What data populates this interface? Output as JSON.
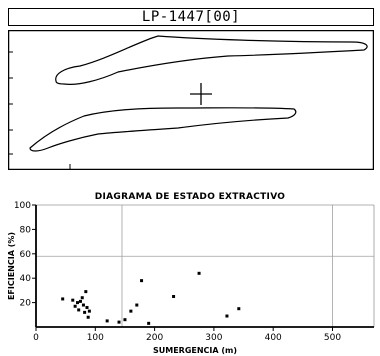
{
  "card": {
    "title": "LP-1447[00]"
  },
  "chart_data": {
    "type": "scatter",
    "title": "DIAGRAMA DE ESTADO EXTRACTIVO",
    "xlabel": "SUMERGENCIA (m)",
    "ylabel": "EFICIENCIA (%)",
    "xlim": [
      0,
      570
    ],
    "ylim": [
      0,
      100
    ],
    "xticks": [
      0,
      100,
      200,
      300,
      400,
      500
    ],
    "yticks": [
      20,
      40,
      60,
      80,
      100
    ],
    "grid": false,
    "reference_lines": {
      "x": [
        145,
        500
      ],
      "y": [
        58
      ]
    },
    "points": [
      {
        "x": 45,
        "y": 23
      },
      {
        "x": 62,
        "y": 22
      },
      {
        "x": 66,
        "y": 17
      },
      {
        "x": 70,
        "y": 20
      },
      {
        "x": 72,
        "y": 14
      },
      {
        "x": 75,
        "y": 21
      },
      {
        "x": 78,
        "y": 24
      },
      {
        "x": 80,
        "y": 18
      },
      {
        "x": 82,
        "y": 12
      },
      {
        "x": 84,
        "y": 29
      },
      {
        "x": 86,
        "y": 16
      },
      {
        "x": 88,
        "y": 8
      },
      {
        "x": 90,
        "y": 13
      },
      {
        "x": 120,
        "y": 5
      },
      {
        "x": 140,
        "y": 4
      },
      {
        "x": 150,
        "y": 6
      },
      {
        "x": 160,
        "y": 13
      },
      {
        "x": 170,
        "y": 18
      },
      {
        "x": 178,
        "y": 38
      },
      {
        "x": 190,
        "y": 3
      },
      {
        "x": 232,
        "y": 25
      },
      {
        "x": 275,
        "y": 44
      },
      {
        "x": 322,
        "y": 9
      },
      {
        "x": 342,
        "y": 15
      }
    ]
  }
}
